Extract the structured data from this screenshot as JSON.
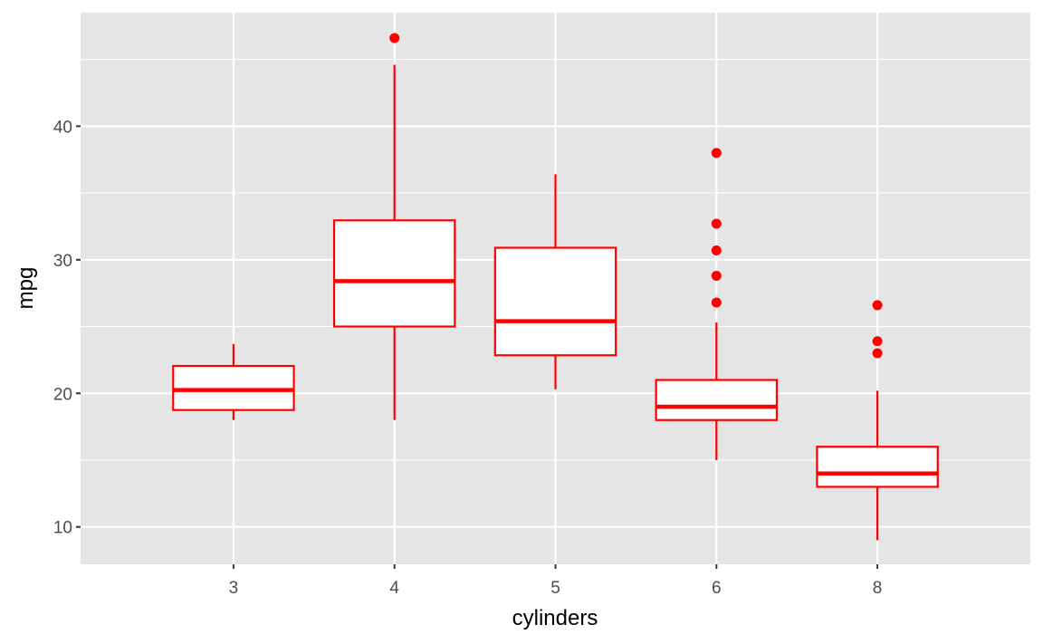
{
  "chart_data": {
    "type": "boxplot",
    "title": "",
    "xlabel": "cylinders",
    "ylabel": "mpg",
    "ylim": [
      7.2,
      48.5
    ],
    "y_ticks": [
      10,
      20,
      30,
      40
    ],
    "y_minor_ticks": [
      15,
      25,
      35,
      45
    ],
    "categories": [
      "3",
      "4",
      "5",
      "6",
      "8"
    ],
    "grid": true,
    "colors": {
      "panel_background": "#e5e5e5",
      "grid": "#ffffff",
      "box_stroke": "#ff0000",
      "box_fill": "#ffffff",
      "outlier": "#ff0000"
    },
    "boxes": [
      {
        "category": "3",
        "whisker_low": 18.0,
        "q1": 18.75,
        "median": 20.25,
        "q3": 22.05,
        "whisker_high": 23.7,
        "outliers": []
      },
      {
        "category": "4",
        "whisker_low": 18.0,
        "q1": 25.0,
        "median": 28.4,
        "q3": 32.95,
        "whisker_high": 44.6,
        "outliers": [
          46.6
        ]
      },
      {
        "category": "5",
        "whisker_low": 20.3,
        "q1": 22.85,
        "median": 25.4,
        "q3": 30.9,
        "whisker_high": 36.4,
        "outliers": []
      },
      {
        "category": "6",
        "whisker_low": 15.0,
        "q1": 18.0,
        "median": 19.0,
        "q3": 21.0,
        "whisker_high": 25.3,
        "outliers": [
          26.8,
          28.8,
          30.7,
          32.7,
          38.0
        ]
      },
      {
        "category": "8",
        "whisker_low": 9.0,
        "q1": 13.0,
        "median": 14.0,
        "q3": 16.0,
        "whisker_high": 20.2,
        "outliers": [
          23.0,
          23.9,
          26.6
        ]
      }
    ]
  }
}
